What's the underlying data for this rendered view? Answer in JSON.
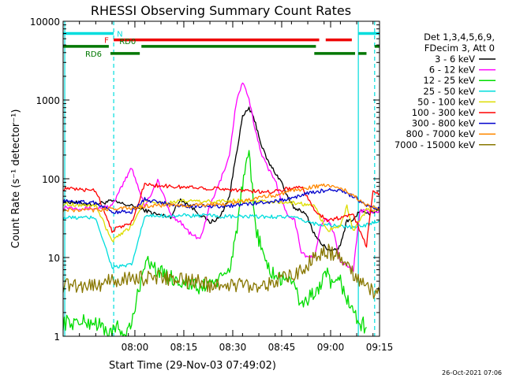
{
  "chart_data": {
    "type": "line",
    "title": "RHESSI Observing Summary Count Rates",
    "xlabel": "Start Time (29-Nov-03 07:49:02)",
    "ylabel": "Count Rate (s⁻¹ detector⁻¹)",
    "ylog": true,
    "ylim": [
      1,
      10000
    ],
    "xlim": [
      -11,
      86
    ],
    "x_unit": "minutes after 07:49:02",
    "x_ticks": [
      {
        "x": 11,
        "label": "08:00"
      },
      {
        "x": 26,
        "label": "08:15"
      },
      {
        "x": 41,
        "label": "08:30"
      },
      {
        "x": 56,
        "label": "08:45"
      },
      {
        "x": 71,
        "label": "09:00"
      },
      {
        "x": 86,
        "label": "09:15"
      }
    ],
    "y_ticks": [
      {
        "y": 1,
        "label": "1"
      },
      {
        "y": 10,
        "label": "10"
      },
      {
        "y": 100,
        "label": "100"
      },
      {
        "y": 1000,
        "label": "1000"
      },
      {
        "y": 10000,
        "label": "10000"
      }
    ],
    "legend_header": [
      "Det 1,3,4,5,6,9,",
      "FDecim 3, Att 0"
    ],
    "legend_position": "right",
    "series": [
      {
        "name": "3 - 6 keV",
        "color": "#000000",
        "x": [
          -11,
          -4,
          -1,
          4,
          10,
          14,
          18,
          22,
          25,
          28,
          31,
          34,
          37,
          40,
          42,
          44,
          46,
          48,
          50,
          52,
          54,
          56,
          58,
          60,
          62,
          64,
          66,
          68,
          70,
          72,
          74,
          76,
          78,
          80,
          82,
          84,
          86
        ],
        "y": [
          52,
          48,
          48,
          52,
          45,
          40,
          35,
          33,
          55,
          45,
          35,
          28,
          32,
          60,
          200,
          600,
          800,
          500,
          250,
          160,
          120,
          90,
          55,
          42,
          40,
          32,
          20,
          15,
          13,
          12,
          14,
          30,
          30,
          40,
          35,
          38,
          42
        ]
      },
      {
        "name": "6 - 12 keV",
        "color": "#ff00ff",
        "x": [
          -11,
          -4,
          -1,
          4,
          10,
          14,
          18,
          22,
          25,
          28,
          31,
          34,
          37,
          40,
          42,
          44,
          46,
          48,
          50,
          52,
          54,
          56,
          58,
          60,
          62,
          64,
          66,
          68,
          70,
          72,
          74,
          76,
          78,
          80,
          82,
          84,
          86
        ],
        "y": [
          44,
          42,
          42,
          45,
          140,
          45,
          95,
          35,
          28,
          20,
          17,
          45,
          90,
          200,
          900,
          1700,
          1000,
          400,
          200,
          130,
          100,
          50,
          35,
          30,
          12,
          10,
          10,
          25,
          32,
          20,
          9,
          8,
          7,
          40,
          38,
          38,
          40
        ]
      },
      {
        "name": "12 - 25 keV",
        "color": "#00dd00",
        "x": [
          -11,
          -4,
          -1,
          2,
          4,
          6,
          8,
          10,
          14,
          16,
          20,
          25,
          28,
          31,
          34,
          37,
          40,
          42,
          44,
          46,
          48,
          50,
          52,
          54,
          56,
          58,
          60,
          62,
          64,
          66,
          68,
          70,
          72,
          74,
          76,
          78,
          80,
          82
        ],
        "y": [
          1.5,
          1.5,
          1.5,
          1.2,
          1.1,
          1.3,
          1.0,
          1.4,
          9,
          8,
          6,
          5,
          4.5,
          4,
          5,
          5,
          7,
          20,
          80,
          200,
          25,
          12,
          7,
          6,
          5,
          6,
          4,
          2.5,
          3,
          3.5,
          4.5,
          6,
          4,
          5,
          3,
          2,
          1.5,
          1.3
        ]
      },
      {
        "name": "25 - 50 keV",
        "color": "#00dddd",
        "x": [
          -11,
          -4,
          -1,
          4,
          10,
          14,
          18,
          22,
          26,
          30,
          34,
          38,
          42,
          46,
          50,
          54,
          58,
          62,
          66,
          70,
          74,
          78,
          82,
          86
        ],
        "y": [
          32,
          32,
          32,
          7.5,
          8,
          33,
          34,
          34,
          34,
          34,
          34,
          33,
          33,
          33,
          33,
          33,
          33,
          30,
          27,
          26,
          25,
          24,
          26,
          30
        ]
      },
      {
        "name": "50 - 100 keV",
        "color": "#dddd00",
        "x": [
          -11,
          -4,
          -1,
          4,
          10,
          14,
          18,
          22,
          26,
          30,
          34,
          38,
          42,
          46,
          50,
          54,
          58,
          62,
          66,
          70,
          74,
          76,
          78,
          80,
          82,
          84,
          86
        ],
        "y": [
          48,
          46,
          46,
          16,
          25,
          55,
          50,
          50,
          52,
          52,
          51,
          52,
          53,
          51,
          52,
          51,
          50,
          48,
          45,
          22,
          25,
          45,
          22,
          30,
          40,
          40,
          40
        ]
      },
      {
        "name": "100 - 300 keV",
        "color": "#ff0000",
        "x": [
          -11,
          -4,
          -1,
          4,
          10,
          14,
          18,
          22,
          26,
          30,
          34,
          38,
          42,
          46,
          50,
          54,
          58,
          62,
          66,
          70,
          74,
          78,
          82,
          84,
          86
        ],
        "y": [
          75,
          72,
          72,
          22,
          28,
          85,
          82,
          80,
          78,
          78,
          75,
          75,
          72,
          70,
          68,
          70,
          75,
          80,
          40,
          30,
          32,
          35,
          14,
          70,
          65
        ]
      },
      {
        "name": "300 - 800 keV",
        "color": "#0000cc",
        "x": [
          -11,
          -4,
          -1,
          4,
          10,
          14,
          18,
          22,
          26,
          30,
          34,
          38,
          42,
          46,
          50,
          54,
          58,
          62,
          66,
          70,
          74,
          78,
          82,
          84,
          86
        ],
        "y": [
          52,
          50,
          50,
          38,
          38,
          55,
          50,
          48,
          45,
          45,
          45,
          45,
          46,
          48,
          50,
          52,
          55,
          62,
          68,
          72,
          70,
          60,
          45,
          42,
          42
        ]
      },
      {
        "name": "800 - 7000 keV",
        "color": "#ff8800",
        "x": [
          -11,
          -4,
          -1,
          4,
          10,
          14,
          18,
          22,
          26,
          30,
          34,
          38,
          42,
          46,
          50,
          54,
          58,
          62,
          66,
          70,
          74,
          78,
          82,
          86
        ],
        "y": [
          40,
          40,
          40,
          42,
          42,
          45,
          46,
          46,
          46,
          46,
          47,
          48,
          50,
          54,
          58,
          62,
          68,
          74,
          80,
          82,
          76,
          62,
          46,
          42
        ]
      },
      {
        "name": "7000 - 15000 keV",
        "color": "#887700",
        "x": [
          -11,
          -4,
          -1,
          4,
          10,
          14,
          18,
          22,
          26,
          30,
          34,
          38,
          42,
          46,
          50,
          54,
          58,
          62,
          66,
          70,
          74,
          78,
          82,
          86
        ],
        "y": [
          4.5,
          4.5,
          4.5,
          5,
          5.5,
          5.5,
          5.5,
          5.5,
          5,
          5,
          4.5,
          4.5,
          4.5,
          4.5,
          4.5,
          5,
          5.5,
          7,
          10,
          12,
          10,
          6,
          4,
          3.5
        ]
      }
    ],
    "vlines": [
      {
        "x": -10.5,
        "color": "#00dddd",
        "style": "solid"
      },
      {
        "x": 4.5,
        "color": "#00dddd",
        "style": "dashed"
      },
      {
        "x": 79.5,
        "color": "#00dddd",
        "style": "solid"
      },
      {
        "x": 84.5,
        "color": "#00dddd",
        "style": "dashed"
      }
    ],
    "status_bars": [
      {
        "label": "N",
        "color": "#00dddd",
        "y": 7000,
        "segments": [
          [
            -11,
            4.5
          ],
          [
            79.5,
            86
          ]
        ]
      },
      {
        "label": "F",
        "color": "#ee0000",
        "y": 5800,
        "segments": [
          [
            4.5,
            67.5
          ],
          [
            69.5,
            77.5
          ]
        ]
      },
      {
        "label": "",
        "color": "#007700",
        "y": 4800,
        "segments": [
          [
            -11,
            3
          ]
        ]
      },
      {
        "label": "RD0",
        "color": "#007700",
        "y": 4800,
        "segments": [
          [
            13,
            66.5
          ],
          [
            84.5,
            86
          ]
        ]
      },
      {
        "label": "RD6",
        "color": "#007700",
        "y": 3900,
        "segments": [
          [
            3.5,
            12.5
          ],
          [
            66,
            78.5
          ],
          [
            79.5,
            82
          ]
        ]
      }
    ]
  },
  "timestamp": "26-Oct-2021 07:06"
}
